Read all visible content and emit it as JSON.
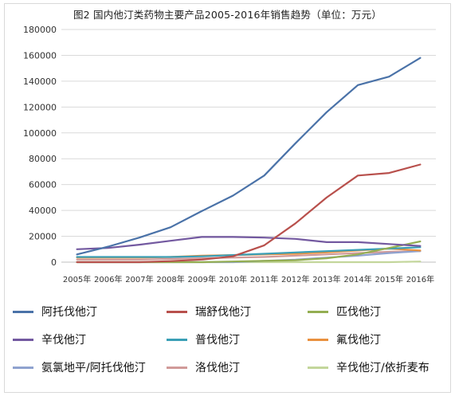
{
  "title": "图2 国内他汀类药物主要产品2005-2016年销售趋势（单位：万元）",
  "chart_data": {
    "type": "line",
    "title": "图2 国内他汀类药物主要产品2005-2016年销售趋势（单位：万元）",
    "xlabel": "",
    "ylabel": "",
    "categories": [
      "2005年",
      "2006年",
      "2007年",
      "2008年",
      "2009年",
      "2010年",
      "2011年",
      "2012年",
      "2013年",
      "2014年",
      "2015年",
      "2016年"
    ],
    "ylim": [
      0,
      180000
    ],
    "yticks": [
      0,
      20000,
      40000,
      60000,
      80000,
      100000,
      120000,
      140000,
      160000,
      180000
    ],
    "ytick_labels": [
      "0",
      "20000",
      "40000",
      "60000",
      "80000",
      "100000",
      "120000",
      "140000",
      "160000",
      "180000"
    ],
    "grid": "horizontal",
    "legend_position": "bottom",
    "series": [
      {
        "name": "阿托伐他汀",
        "color": "#4a72a8",
        "values": [
          6000,
          12000,
          19000,
          27000,
          39500,
          51500,
          67000,
          92000,
          116000,
          137000,
          143500,
          158000
        ]
      },
      {
        "name": "瑞舒伐他汀",
        "color": "#b8504c",
        "values": [
          0,
          0,
          0,
          800,
          2000,
          4500,
          13000,
          30000,
          50000,
          67000,
          69000,
          75500
        ]
      },
      {
        "name": "匹伐他汀",
        "color": "#94ae52",
        "values": [
          0,
          0,
          0,
          0,
          0,
          500,
          1000,
          1500,
          3000,
          6000,
          11000,
          16000
        ]
      },
      {
        "name": "辛伐他汀",
        "color": "#7359a0",
        "values": [
          10000,
          11000,
          13500,
          16500,
          19500,
          19500,
          19000,
          18000,
          15500,
          15500,
          14000,
          12500
        ]
      },
      {
        "name": "普伐他汀",
        "color": "#3a9fb6",
        "values": [
          4000,
          4000,
          4000,
          4000,
          4500,
          5500,
          6500,
          7500,
          8500,
          9500,
          10500,
          11500
        ]
      },
      {
        "name": "氟伐他汀",
        "color": "#e9913f",
        "values": [
          3500,
          3500,
          3500,
          4000,
          5000,
          5500,
          6000,
          6500,
          7500,
          9000,
          10500,
          9000
        ]
      },
      {
        "name": "氨氯地平/阿托伐他汀",
        "color": "#8fa2cf",
        "values": [
          0,
          0,
          0,
          0,
          0,
          0,
          1000,
          2000,
          3500,
          5000,
          7000,
          8500
        ]
      },
      {
        "name": "洛伐他汀",
        "color": "#d19a99",
        "values": [
          2000,
          2000,
          2000,
          2500,
          3000,
          3500,
          4000,
          5000,
          6000,
          7000,
          8000,
          8500
        ]
      },
      {
        "name": "辛伐他汀/依折麦布",
        "color": "#c3d69b",
        "values": [
          0,
          0,
          0,
          0,
          0,
          0,
          0,
          0,
          0,
          0,
          0,
          500
        ]
      }
    ]
  }
}
